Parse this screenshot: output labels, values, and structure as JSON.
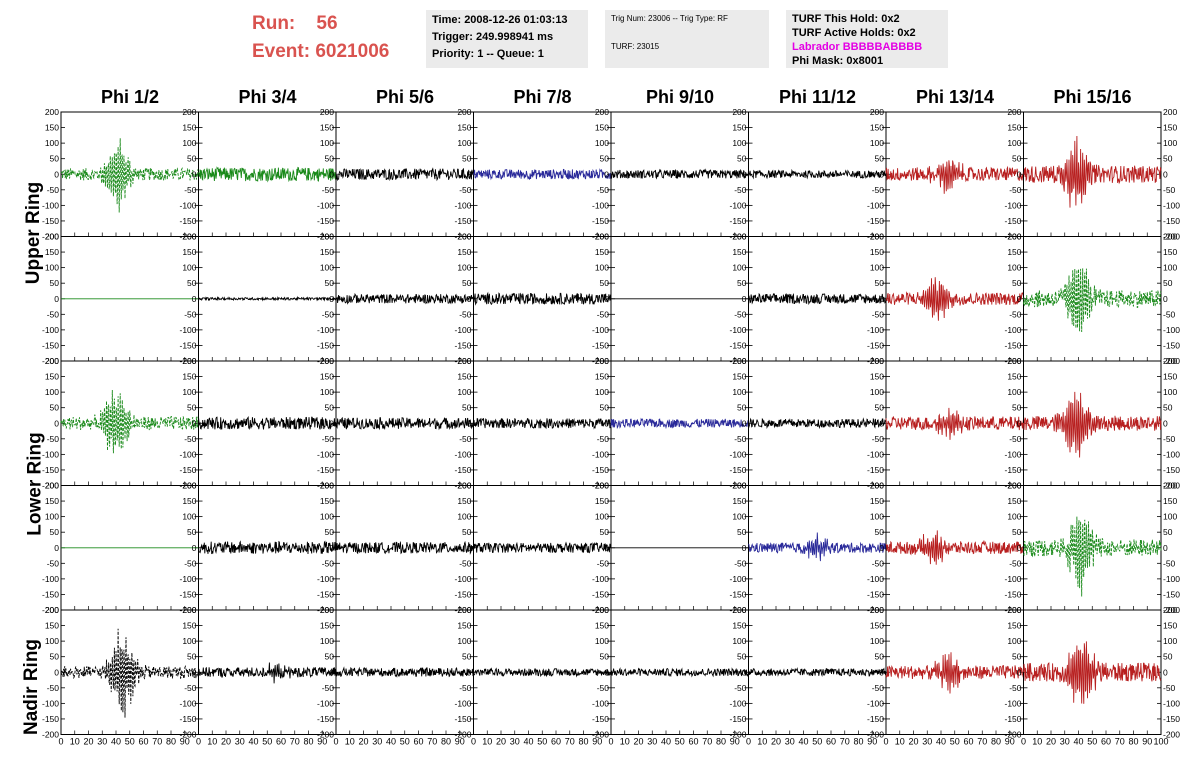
{
  "header": {
    "run_label": "Run:",
    "run_value": "56",
    "event_label": "Event:",
    "event_value": "6021006"
  },
  "info": {
    "time": "Time: 2008-12-26 01:03:13",
    "trigger": "Trigger: 249.998941 ms",
    "priority": "Priority: 1 -- Queue: 1",
    "trig_num": "Trig Num: 23006 -- Trig Type: RF",
    "turf": "TURF: 23015",
    "turf_this_hold": "TURF This Hold: 0x2",
    "turf_active_holds": "TURF Active Holds: 0x2",
    "labrador": "Labrador BBBBBABBBB",
    "phi_mask": "Phi Mask: 0x8001"
  },
  "chart_data": {
    "type": "line",
    "columns": [
      "Phi 1/2",
      "Phi 3/4",
      "Phi 5/6",
      "Phi 7/8",
      "Phi 9/10",
      "Phi 11/12",
      "Phi 13/14",
      "Phi 15/16"
    ],
    "ring_labels": [
      "Upper Ring",
      "Lower Ring",
      "Nadir Ring"
    ],
    "ylim": [
      -200,
      200
    ],
    "xlim": [
      0,
      100
    ],
    "y_ticks": [
      200,
      150,
      100,
      50,
      0,
      -50,
      -100,
      -150,
      -200
    ],
    "x_ticks": [
      0,
      10,
      20,
      30,
      40,
      50,
      60,
      70,
      80,
      90
    ],
    "x_ticks_last": [
      0,
      10,
      20,
      30,
      40,
      50,
      60,
      70,
      80,
      90,
      100
    ],
    "colors": {
      "black": "#000000",
      "green": "#1a8a1a",
      "blue": "#2a2a9a",
      "red": "#b82020"
    },
    "rows": [
      [
        {
          "color": "green",
          "dashed": true,
          "amp": 20,
          "burst": 115,
          "center": 42
        },
        {
          "color": "green",
          "dashed": false,
          "amp": 22,
          "burst": 0,
          "center": 50
        },
        {
          "color": "black",
          "dashed": false,
          "amp": 18,
          "burst": 0,
          "center": 50
        },
        {
          "color": "blue",
          "dashed": false,
          "amp": 16,
          "burst": 0,
          "center": 50
        },
        {
          "color": "black",
          "dashed": false,
          "amp": 14,
          "burst": 0,
          "center": 50
        },
        {
          "color": "black",
          "dashed": false,
          "amp": 12,
          "burst": 0,
          "center": 50
        },
        {
          "color": "red",
          "dashed": false,
          "amp": 22,
          "burst": 60,
          "center": 45
        },
        {
          "color": "red",
          "dashed": false,
          "amp": 28,
          "burst": 120,
          "center": 38
        }
      ],
      [
        {
          "color": "green",
          "dashed": false,
          "amp": 0,
          "burst": 0,
          "center": 50
        },
        {
          "color": "black",
          "dashed": false,
          "amp": 4,
          "burst": 0,
          "center": 50
        },
        {
          "color": "black",
          "dashed": false,
          "amp": 15,
          "burst": 0,
          "center": 50
        },
        {
          "color": "black",
          "dashed": false,
          "amp": 18,
          "burst": 0,
          "center": 50
        },
        {
          "color": "black",
          "dashed": false,
          "amp": 0,
          "burst": 0,
          "center": 50
        },
        {
          "color": "black",
          "dashed": false,
          "amp": 16,
          "burst": 0,
          "center": 50
        },
        {
          "color": "red",
          "dashed": false,
          "amp": 20,
          "burst": 70,
          "center": 38
        },
        {
          "color": "green",
          "dashed": true,
          "amp": 28,
          "burst": 140,
          "center": 40
        }
      ],
      [
        {
          "color": "green",
          "dashed": true,
          "amp": 22,
          "burst": 120,
          "center": 40
        },
        {
          "color": "black",
          "dashed": false,
          "amp": 20,
          "burst": 0,
          "center": 50
        },
        {
          "color": "black",
          "dashed": false,
          "amp": 18,
          "burst": 0,
          "center": 50
        },
        {
          "color": "black",
          "dashed": false,
          "amp": 16,
          "burst": 0,
          "center": 50
        },
        {
          "color": "blue",
          "dashed": false,
          "amp": 14,
          "burst": 0,
          "center": 50
        },
        {
          "color": "black",
          "dashed": false,
          "amp": 14,
          "burst": 0,
          "center": 50
        },
        {
          "color": "red",
          "dashed": false,
          "amp": 22,
          "burst": 50,
          "center": 45
        },
        {
          "color": "red",
          "dashed": false,
          "amp": 24,
          "burst": 115,
          "center": 38
        }
      ],
      [
        {
          "color": "green",
          "dashed": false,
          "amp": 0,
          "burst": 0,
          "center": 50
        },
        {
          "color": "black",
          "dashed": false,
          "amp": 20,
          "burst": 0,
          "center": 50
        },
        {
          "color": "black",
          "dashed": false,
          "amp": 18,
          "burst": 0,
          "center": 50
        },
        {
          "color": "black",
          "dashed": false,
          "amp": 16,
          "burst": 0,
          "center": 50
        },
        {
          "color": "black",
          "dashed": false,
          "amp": 0,
          "burst": 0,
          "center": 50
        },
        {
          "color": "blue",
          "dashed": false,
          "amp": 16,
          "burst": 40,
          "center": 50
        },
        {
          "color": "red",
          "dashed": false,
          "amp": 20,
          "burst": 60,
          "center": 35
        },
        {
          "color": "green",
          "dashed": true,
          "amp": 28,
          "burst": 150,
          "center": 42
        }
      ],
      [
        {
          "color": "black",
          "dashed": true,
          "amp": 20,
          "burst": 145,
          "center": 45
        },
        {
          "color": "black",
          "dashed": false,
          "amp": 16,
          "burst": 25,
          "center": 55
        },
        {
          "color": "black",
          "dashed": false,
          "amp": 14,
          "burst": 0,
          "center": 50
        },
        {
          "color": "black",
          "dashed": false,
          "amp": 12,
          "burst": 0,
          "center": 50
        },
        {
          "color": "black",
          "dashed": false,
          "amp": 12,
          "burst": 0,
          "center": 50
        },
        {
          "color": "black",
          "dashed": false,
          "amp": 12,
          "burst": 0,
          "center": 50
        },
        {
          "color": "red",
          "dashed": false,
          "amp": 22,
          "burst": 60,
          "center": 45
        },
        {
          "color": "red",
          "dashed": false,
          "amp": 30,
          "burst": 125,
          "center": 42
        }
      ]
    ]
  }
}
